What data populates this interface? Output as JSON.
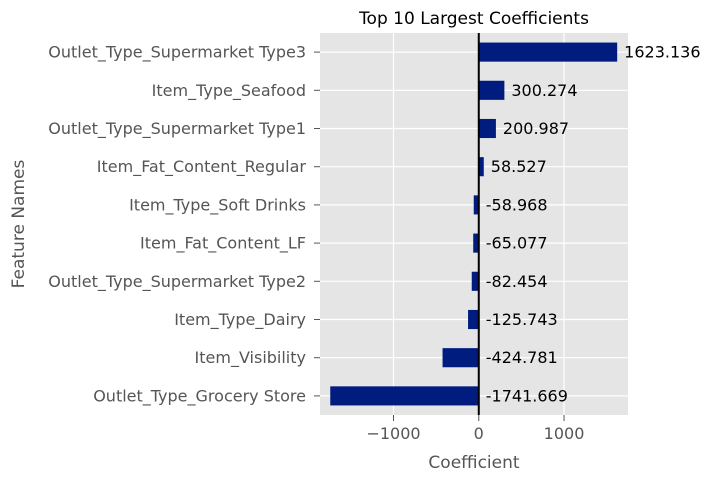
{
  "chart_data": {
    "type": "bar",
    "orientation": "horizontal",
    "title": "Top 10 Largest Coefficients",
    "xlabel": "Coefficient",
    "ylabel": "Feature Names",
    "categories": [
      "Outlet_Type_Supermarket Type3",
      "Item_Type_Seafood",
      "Outlet_Type_Supermarket Type1",
      "Item_Fat_Content_Regular",
      "Item_Type_Soft Drinks",
      "Item_Fat_Content_LF",
      "Outlet_Type_Supermarket Type2",
      "Item_Type_Dairy",
      "Item_Visibility",
      "Outlet_Type_Grocery Store"
    ],
    "values": [
      1623.136,
      300.274,
      200.987,
      58.527,
      -58.968,
      -65.077,
      -82.454,
      -125.743,
      -424.781,
      -1741.669
    ],
    "data_labels": [
      "1623.136",
      "300.274",
      "200.987",
      "58.527",
      "-58.968",
      "-65.077",
      "-82.454",
      "-125.743",
      "-424.781",
      "-1741.669"
    ],
    "xlim": [
      -1862,
      1750
    ],
    "xticks": [
      -1000,
      0,
      1000
    ],
    "xtick_labels": [
      "−1000",
      "0",
      "1000"
    ],
    "grid": true,
    "zero_line": true,
    "colors": {
      "bar": "#001c7f",
      "plot_background": "#e5e5e5",
      "grid": "#ffffff",
      "zero_line": "#000000"
    }
  }
}
